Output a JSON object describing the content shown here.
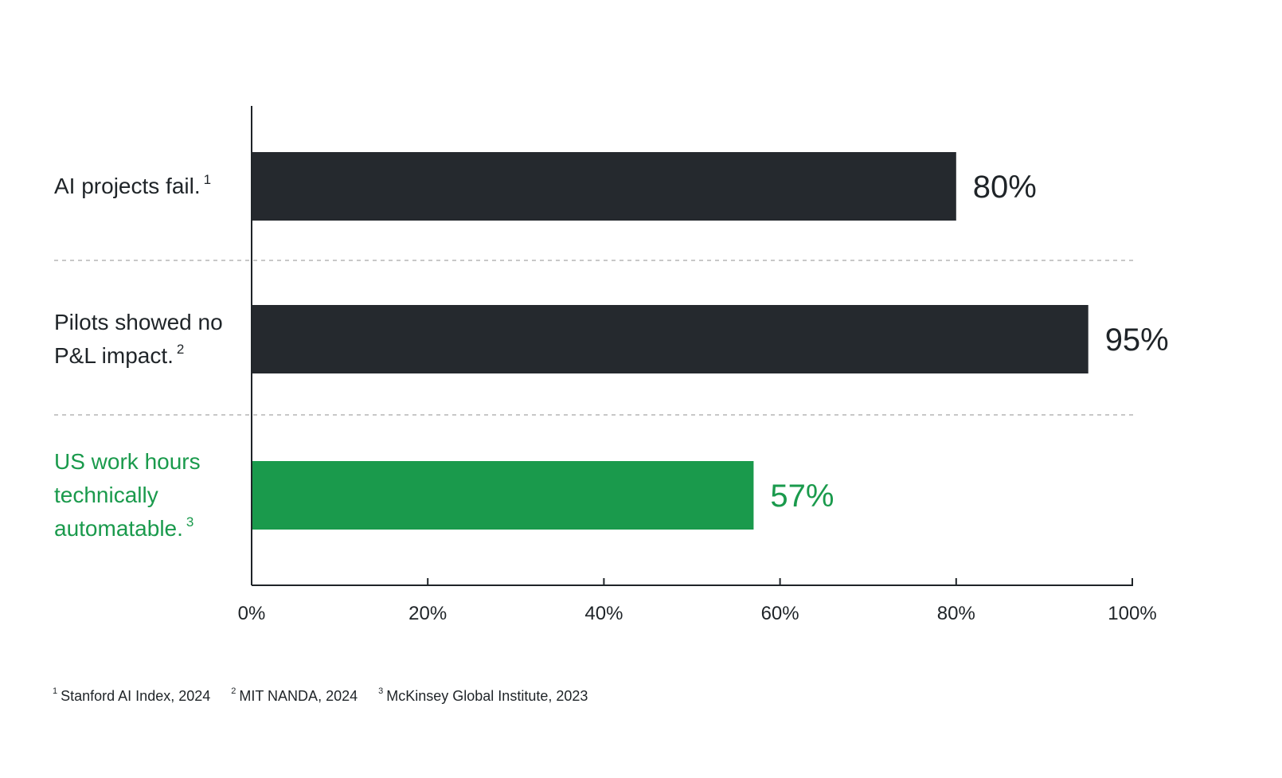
{
  "chart_data": {
    "type": "bar",
    "orientation": "horizontal",
    "title": "",
    "xlabel": "",
    "ylabel": "",
    "xlim": [
      0,
      100
    ],
    "x_ticks": [
      "0%",
      "20%",
      "40%",
      "60%",
      "80%",
      "100%"
    ],
    "x_tick_values": [
      0,
      20,
      40,
      60,
      80,
      100
    ],
    "grid": "dashed separators between categories",
    "legend": "none",
    "categories": [
      {
        "lines": [
          "AI projects fail."
        ],
        "sup": "1",
        "highlight": false
      },
      {
        "lines": [
          "Pilots showed no",
          "P&L impact."
        ],
        "sup": "2",
        "highlight": false
      },
      {
        "lines": [
          "US work hours",
          "technically",
          "automatable."
        ],
        "sup": "3",
        "highlight": true
      }
    ],
    "values": [
      80,
      95,
      57
    ],
    "value_labels": [
      "80%",
      "95%",
      "57%"
    ],
    "colors": {
      "bar_default": "#25292e",
      "bar_highlight": "#1a9a4c",
      "text": "#1f2428",
      "highlight_text": "#1a9a4c",
      "gridline": "#b5b5b5"
    }
  },
  "footnotes": [
    {
      "num": "1",
      "text": "Stanford AI Index, 2024"
    },
    {
      "num": "2",
      "text": "MIT NANDA, 2024"
    },
    {
      "num": "3",
      "text": "McKinsey Global Institute, 2023"
    }
  ]
}
